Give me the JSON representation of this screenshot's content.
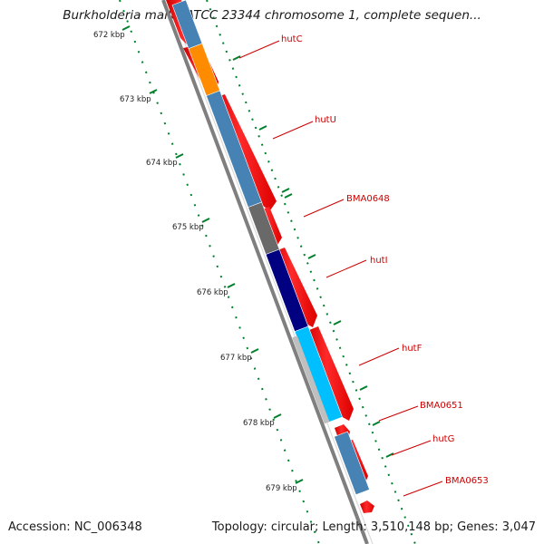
{
  "header": {
    "title": "Burkholderia mallei ATCC 23344 chromosome 1, complete sequen..."
  },
  "footer": {
    "accession": "Accession: NC_006348",
    "summary": "Topology: circular; Length: 3,510,148 bp; Genes: 3,047"
  },
  "colors": {
    "backbone": "#7f7f7f",
    "cds_strand": "#ff0000",
    "tick": "#00802b",
    "label": "#cc0000"
  },
  "ruler": {
    "unit": "kbp",
    "ticks": [
      {
        "label": "672 kbp"
      },
      {
        "label": "673 kbp"
      },
      {
        "label": "674 kbp"
      },
      {
        "label": "675 kbp"
      },
      {
        "label": "676 kbp"
      },
      {
        "label": "677 kbp"
      },
      {
        "label": "678 kbp"
      },
      {
        "label": "679 kbp"
      }
    ]
  },
  "genes": [
    {
      "name": "hutC",
      "color": "#ff8c00"
    },
    {
      "name": "hutU",
      "color": "#4682b4"
    },
    {
      "name": "BMA0648",
      "color": "#696969"
    },
    {
      "name": "hutI",
      "color": "#000080"
    },
    {
      "name": "hutF",
      "color": "#00bfff"
    },
    {
      "name": "BMA0651",
      "color": "#bfbfbf"
    },
    {
      "name": "hutG",
      "color": "#4682b4"
    },
    {
      "name": "BMA0653",
      "color": "#4682b4"
    }
  ]
}
